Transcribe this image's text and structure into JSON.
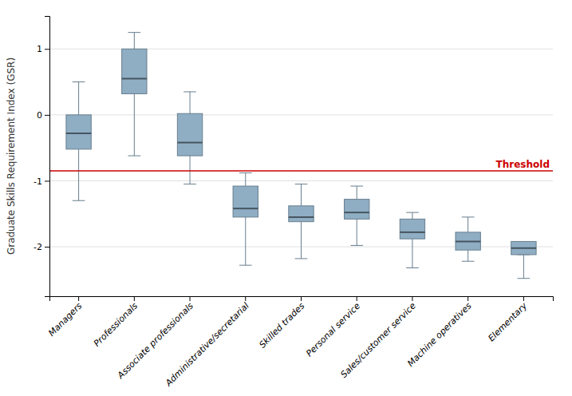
{
  "chart_data": {
    "type": "box",
    "categories": [
      "Managers",
      "Professionals",
      "Associate professionals",
      "Administrative/secretarial",
      "Skilled trades",
      "Personal service",
      "Sales/customer service",
      "Machine operatives",
      "Elementary"
    ],
    "whislo": [
      -1.3,
      -0.62,
      -1.05,
      -2.28,
      -2.18,
      -1.98,
      -2.32,
      -2.22,
      -2.48
    ],
    "q1": [
      -0.52,
      0.32,
      -0.62,
      -1.55,
      -1.62,
      -1.58,
      -1.88,
      -2.05,
      -2.12
    ],
    "med": [
      -0.28,
      0.55,
      -0.42,
      -1.42,
      -1.55,
      -1.48,
      -1.78,
      -1.92,
      -2.02
    ],
    "q3": [
      0.0,
      1.0,
      0.02,
      -1.08,
      -1.38,
      -1.28,
      -1.58,
      -1.78,
      -1.92
    ],
    "whishi": [
      0.5,
      1.25,
      0.35,
      -0.88,
      -1.05,
      -1.08,
      -1.48,
      -1.55,
      -2.12
    ],
    "color": "#8faec4",
    "annotations": [
      {
        "type": "hline",
        "y": -0.85,
        "text": "Threshold",
        "color": "#cc0000"
      }
    ],
    "ylabel": "Graduate Skills Requirement Index (GSR)",
    "ylim": [
      -2.75,
      1.5
    ],
    "yticks": [
      -2,
      -1,
      0,
      1
    ],
    "grid": true
  }
}
